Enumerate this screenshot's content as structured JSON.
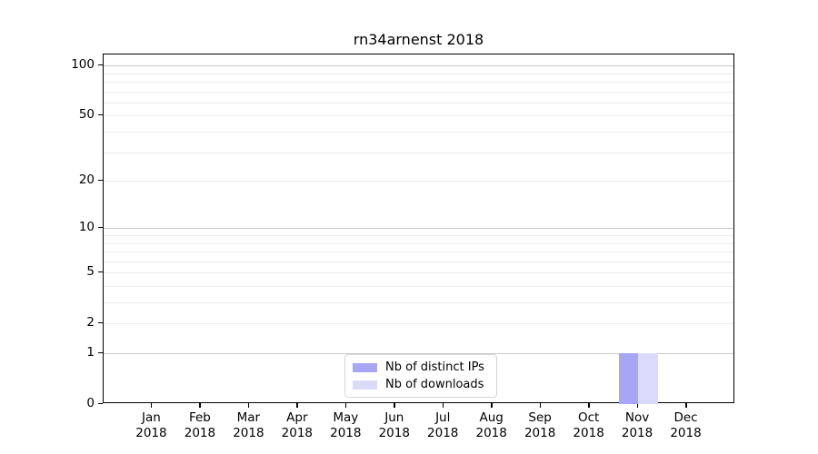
{
  "chart_data": {
    "type": "bar",
    "title": "rn34arnenst 2018",
    "categories": [
      "Jan 2018",
      "Feb 2018",
      "Mar 2018",
      "Apr 2018",
      "May 2018",
      "Jun 2018",
      "Jul 2018",
      "Aug 2018",
      "Sep 2018",
      "Oct 2018",
      "Nov 2018",
      "Dec 2018"
    ],
    "series": [
      {
        "name": "Nb of distinct IPs",
        "color": "#a6a6f4",
        "values": [
          0,
          0,
          0,
          0,
          0,
          0,
          0,
          0,
          0,
          0,
          1,
          0
        ]
      },
      {
        "name": "Nb of downloads",
        "color": "#dbdbf9",
        "values": [
          0,
          0,
          0,
          0,
          0,
          0,
          0,
          0,
          0,
          0,
          1,
          0
        ]
      }
    ],
    "xlabel": "",
    "ylabel": "",
    "yscale": "log1p",
    "ylim": [
      0,
      115
    ],
    "ytick_values": [
      0,
      1,
      2,
      5,
      10,
      20,
      50,
      100
    ],
    "grid": "horizontal",
    "legend_position": "lower center"
  },
  "axes": {
    "major_gridlines": [
      1,
      10,
      100
    ],
    "minor_gridlines": [
      2,
      3,
      4,
      5,
      6,
      7,
      8,
      9,
      20,
      30,
      40,
      50,
      60,
      70,
      80,
      90
    ]
  },
  "colors": {
    "background": "#ffffff",
    "spine": "#000000",
    "tick_label": "#000000",
    "major_grid": "#c9c9c9",
    "minor_grid": "#ececec",
    "legend_border": "#d5d5d5"
  }
}
